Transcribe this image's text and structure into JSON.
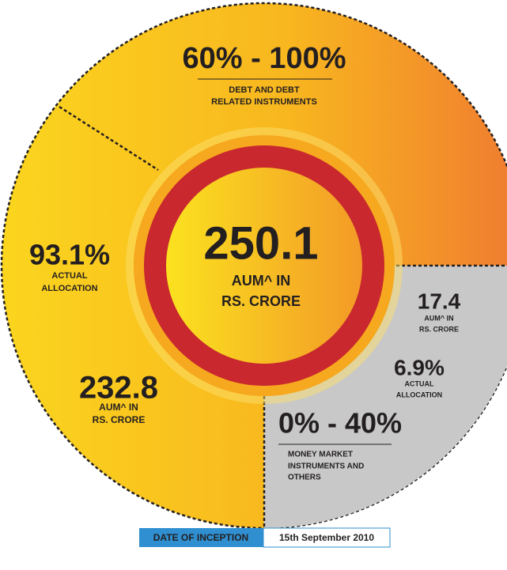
{
  "debt": {
    "range": "60% - 100%",
    "label_bold": "DEBT AND DEBT",
    "label": "RELATED INSTRUMENTS",
    "actual": "93.1%",
    "actual_label": [
      "ACTUAL",
      "ALLOCATION"
    ],
    "aum": "232.8",
    "aum_label": [
      "AUM^ IN",
      "RS. CRORE"
    ]
  },
  "total": {
    "aum": "250.1",
    "aum_label": [
      "AUM^ IN",
      "RS. CRORE"
    ]
  },
  "money_market": {
    "aum": "17.4",
    "aum_label": [
      "AUM^ IN",
      "RS. CRORE"
    ],
    "actual": "6.9%",
    "actual_label": [
      "ACTUAL",
      "ALLOCATION"
    ],
    "range": "0% - 40%",
    "label_bold": "MONEY MARKET",
    "label": [
      "INSTRUMENTS AND",
      "OTHERS"
    ]
  },
  "inception": {
    "label": "DATE OF INCEPTION",
    "date": "15th September 2010"
  }
}
